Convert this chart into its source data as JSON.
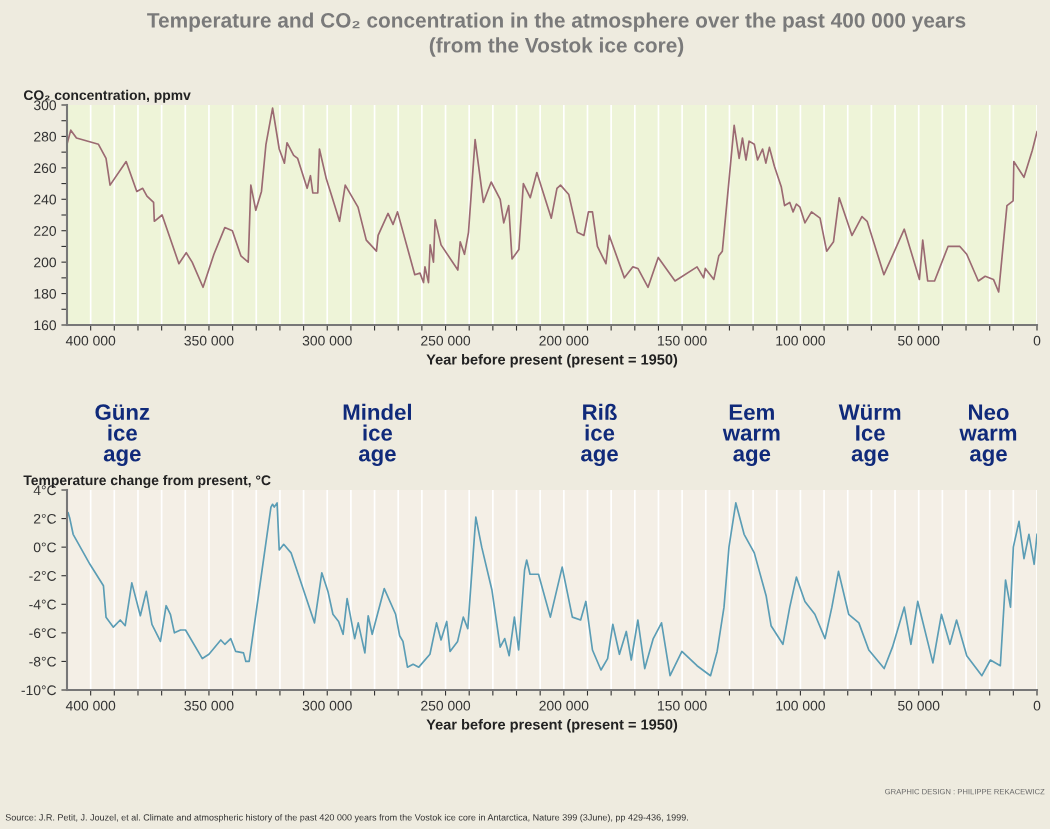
{
  "chart_data": [
    {
      "type": "line",
      "title": "Temperature and CO₂ concentration in the atmosphere over the past 400 000 years",
      "subtitle": "(from the Vostok ice core)",
      "ylabel": "CO₂ concentration, ppmv",
      "xlabel": "Year before present (present = 1950)",
      "grid": "x",
      "xlim": [
        410000,
        0
      ],
      "ylim": [
        160,
        300
      ],
      "xticks": [
        {
          "value": 400000,
          "label": "400 000"
        },
        {
          "value": 390000,
          "label": null
        },
        {
          "value": 380000,
          "label": null
        },
        {
          "value": 370000,
          "label": null
        },
        {
          "value": 360000,
          "label": null
        },
        {
          "value": 350000,
          "label": "350 000"
        },
        {
          "value": 340000,
          "label": null
        },
        {
          "value": 330000,
          "label": null
        },
        {
          "value": 320000,
          "label": null
        },
        {
          "value": 310000,
          "label": null
        },
        {
          "value": 300000,
          "label": "300 000"
        },
        {
          "value": 290000,
          "label": null
        },
        {
          "value": 280000,
          "label": null
        },
        {
          "value": 270000,
          "label": null
        },
        {
          "value": 260000,
          "label": null
        },
        {
          "value": 250000,
          "label": "250 000"
        },
        {
          "value": 240000,
          "label": null
        },
        {
          "value": 230000,
          "label": null
        },
        {
          "value": 220000,
          "label": null
        },
        {
          "value": 210000,
          "label": null
        },
        {
          "value": 200000,
          "label": "200 000"
        },
        {
          "value": 190000,
          "label": null
        },
        {
          "value": 180000,
          "label": null
        },
        {
          "value": 170000,
          "label": null
        },
        {
          "value": 160000,
          "label": null
        },
        {
          "value": 150000,
          "label": "150 000"
        },
        {
          "value": 140000,
          "label": null
        },
        {
          "value": 130000,
          "label": null
        },
        {
          "value": 120000,
          "label": null
        },
        {
          "value": 110000,
          "label": null
        },
        {
          "value": 100000,
          "label": "100 000"
        },
        {
          "value": 90000,
          "label": null
        },
        {
          "value": 80000,
          "label": null
        },
        {
          "value": 70000,
          "label": null
        },
        {
          "value": 60000,
          "label": null
        },
        {
          "value": 50000,
          "label": "50 000"
        },
        {
          "value": 40000,
          "label": null
        },
        {
          "value": 30000,
          "label": null
        },
        {
          "value": 20000,
          "label": null
        },
        {
          "value": 10000,
          "label": null
        },
        0
      ],
      "yticks": [
        160,
        {
          "value": 170,
          "label": null
        },
        180,
        {
          "value": 190,
          "label": null
        },
        200,
        {
          "value": 210,
          "label": null
        },
        220,
        {
          "value": 230,
          "label": null
        },
        240,
        {
          "value": 250,
          "label": null
        },
        260,
        {
          "value": 270,
          "label": null
        },
        280,
        {
          "value": 290,
          "label": null
        },
        300
      ],
      "series": [
        {
          "color": "#9b6a72",
          "x": [
            410000,
            408400,
            406000,
            396700,
            393500,
            391800,
            385000,
            380500,
            378000,
            376200,
            373400,
            373100,
            369800,
            362700,
            359600,
            357100,
            352500,
            347900,
            343300,
            340100,
            336500,
            333400,
            332300,
            330200,
            327800,
            325900,
            323100,
            320300,
            318100,
            317000,
            314200,
            312500,
            308500,
            307100,
            306100,
            304000,
            303300,
            300400,
            298300,
            294800,
            292400,
            287000,
            283500,
            279200,
            278500,
            274300,
            272200,
            270300,
            263000,
            260800,
            259300,
            258700,
            257200,
            256500,
            255100,
            254400,
            251900,
            244800,
            243800,
            242000,
            240300,
            237500,
            234000,
            232500,
            230700,
            226900,
            225400,
            223300,
            221900,
            219000,
            217100,
            214200,
            211400,
            205300,
            202900,
            201400,
            197900,
            194300,
            191500,
            189600,
            187900,
            185800,
            182200,
            180800,
            174400,
            170800,
            168700,
            164400,
            160100,
            153000,
            143700,
            140900,
            140200,
            136600,
            134500,
            133000,
            128000,
            125900,
            124500,
            123000,
            121700,
            119500,
            118100,
            116000,
            114600,
            113100,
            111000,
            108100,
            106700,
            104500,
            103100,
            101700,
            100200,
            98100,
            95300,
            91700,
            88900,
            86000,
            83600,
            78200,
            74000,
            71800,
            64700,
            56100,
            49700,
            48300,
            46200,
            43300,
            37600,
            32600,
            29700,
            24800,
            21900,
            18400,
            16200,
            12700,
            10100,
            9800,
            5500,
            2000,
            0
          ],
          "values": [
            275,
            284,
            279,
            275,
            266,
            249,
            264,
            245,
            247,
            242,
            238,
            226,
            230,
            199,
            206,
            200,
            184,
            205,
            222,
            220,
            204,
            200,
            249,
            233,
            245,
            275,
            298,
            272,
            263,
            276,
            268,
            266,
            247,
            255,
            244,
            244,
            272,
            253,
            243,
            226,
            249,
            235,
            214,
            207,
            217,
            231,
            224,
            232,
            192,
            193,
            187,
            197,
            187,
            211,
            200,
            227,
            211,
            195,
            213,
            205,
            219,
            278,
            238,
            244,
            251,
            240,
            225,
            236,
            202,
            208,
            250,
            241,
            257,
            228,
            247,
            249,
            243,
            219,
            217,
            232,
            232,
            210,
            199,
            217,
            190,
            197,
            196,
            184,
            203,
            188,
            197,
            190,
            196,
            189,
            204,
            207,
            287,
            266,
            279,
            265,
            277,
            275,
            265,
            272,
            263,
            273,
            261,
            248,
            236,
            238,
            232,
            237,
            235,
            225,
            232,
            228,
            207,
            213,
            241,
            217,
            229,
            226,
            192,
            221,
            189,
            214,
            188,
            188,
            210,
            210,
            205,
            188,
            191,
            189,
            181,
            236,
            239,
            264,
            254,
            271,
            283
          ]
        }
      ]
    },
    {
      "type": "line",
      "ylabel": "Temperature change from present, °C",
      "xlabel": "Year before present (present = 1950)",
      "grid": "x",
      "xlim": [
        410000,
        0
      ],
      "ylim": [
        -10,
        4
      ],
      "xticks": [
        {
          "value": 400000,
          "label": "400 000"
        },
        {
          "value": 390000,
          "label": null
        },
        {
          "value": 380000,
          "label": null
        },
        {
          "value": 370000,
          "label": null
        },
        {
          "value": 360000,
          "label": null
        },
        {
          "value": 350000,
          "label": "350 000"
        },
        {
          "value": 340000,
          "label": null
        },
        {
          "value": 330000,
          "label": null
        },
        {
          "value": 320000,
          "label": null
        },
        {
          "value": 310000,
          "label": null
        },
        {
          "value": 300000,
          "label": "300 000"
        },
        {
          "value": 290000,
          "label": null
        },
        {
          "value": 280000,
          "label": null
        },
        {
          "value": 270000,
          "label": null
        },
        {
          "value": 260000,
          "label": null
        },
        {
          "value": 250000,
          "label": "250 000"
        },
        {
          "value": 240000,
          "label": null
        },
        {
          "value": 230000,
          "label": null
        },
        {
          "value": 220000,
          "label": null
        },
        {
          "value": 210000,
          "label": null
        },
        {
          "value": 200000,
          "label": "200 000"
        },
        {
          "value": 190000,
          "label": null
        },
        {
          "value": 180000,
          "label": null
        },
        {
          "value": 170000,
          "label": null
        },
        {
          "value": 160000,
          "label": null
        },
        {
          "value": 150000,
          "label": "150 000"
        },
        {
          "value": 140000,
          "label": null
        },
        {
          "value": 130000,
          "label": null
        },
        {
          "value": 120000,
          "label": null
        },
        {
          "value": 110000,
          "label": null
        },
        {
          "value": 100000,
          "label": "100 000"
        },
        {
          "value": 90000,
          "label": null
        },
        {
          "value": 80000,
          "label": null
        },
        {
          "value": 70000,
          "label": null
        },
        {
          "value": 60000,
          "label": null
        },
        {
          "value": 50000,
          "label": "50 000"
        },
        {
          "value": 40000,
          "label": null
        },
        {
          "value": 30000,
          "label": null
        },
        {
          "value": 20000,
          "label": null
        },
        {
          "value": 10000,
          "label": null
        },
        0
      ],
      "yticks": [
        {
          "value": -10,
          "label": "-10°C"
        },
        {
          "value": -8,
          "label": "-8°C"
        },
        {
          "value": -6,
          "label": "-6°C"
        },
        {
          "value": -4,
          "label": "-4°C"
        },
        {
          "value": -2,
          "label": "-2°C"
        },
        {
          "value": 0,
          "label": "0°C"
        },
        {
          "value": 2,
          "label": "2°C"
        },
        {
          "value": 4,
          "label": "4°C"
        }
      ],
      "series": [
        {
          "color": "#5b9db5",
          "x": [
            409500,
            408800,
            407400,
            400300,
            394600,
            393500,
            390400,
            387500,
            385400,
            382600,
            379000,
            376500,
            374100,
            370500,
            368100,
            366300,
            364600,
            362000,
            359900,
            352800,
            350000,
            345000,
            343300,
            340800,
            338700,
            335400,
            334400,
            333000,
            323800,
            323100,
            322400,
            321200,
            320300,
            318400,
            315300,
            305400,
            302300,
            299700,
            297600,
            295200,
            293300,
            291600,
            288400,
            286900,
            284100,
            282700,
            281000,
            275900,
            271100,
            269400,
            268000,
            266100,
            263700,
            261300,
            256600,
            253800,
            251900,
            249500,
            248100,
            244900,
            242500,
            240600,
            237200,
            234700,
            230400,
            226900,
            225000,
            223100,
            220900,
            219100,
            216600,
            215700,
            214300,
            210700,
            205700,
            200700,
            196400,
            192900,
            190700,
            187900,
            184300,
            181500,
            179300,
            176500,
            173600,
            171500,
            168700,
            165800,
            162200,
            158700,
            155100,
            150100,
            143700,
            138000,
            135200,
            132300,
            130200,
            127300,
            123800,
            119500,
            114500,
            112400,
            107400,
            104500,
            101700,
            98100,
            93900,
            89600,
            86700,
            83900,
            79600,
            75300,
            71100,
            64600,
            61100,
            56100,
            53300,
            50400,
            44000,
            40400,
            36800,
            34000,
            29700,
            23300,
            19700,
            15500,
            13300,
            11200,
            10000,
            7600,
            5500,
            3400,
            1200,
            0
          ],
          "values": [
            2.4,
            2.0,
            0.9,
            -1.2,
            -2.7,
            -4.9,
            -5.6,
            -5.1,
            -5.5,
            -2.5,
            -4.8,
            -3.1,
            -5.4,
            -6.6,
            -4.1,
            -4.7,
            -6.0,
            -5.8,
            -5.8,
            -7.8,
            -7.5,
            -6.5,
            -6.8,
            -6.4,
            -7.3,
            -7.4,
            -8.0,
            -8.0,
            2.8,
            3.0,
            2.8,
            3.1,
            -0.2,
            0.2,
            -0.4,
            -5.3,
            -1.8,
            -3.1,
            -4.7,
            -5.2,
            -6.1,
            -3.6,
            -6.4,
            -5.3,
            -7.4,
            -4.8,
            -6.1,
            -2.9,
            -4.7,
            -6.2,
            -6.6,
            -8.4,
            -8.2,
            -8.4,
            -7.5,
            -5.3,
            -6.5,
            -5.2,
            -7.3,
            -6.6,
            -4.9,
            -5.7,
            2.1,
            0.0,
            -3.0,
            -7.0,
            -6.4,
            -7.6,
            -4.9,
            -7.2,
            -1.6,
            -0.9,
            -1.9,
            -1.9,
            -4.9,
            -1.4,
            -4.9,
            -5.1,
            -3.8,
            -7.2,
            -8.6,
            -7.8,
            -5.4,
            -7.5,
            -5.9,
            -7.9,
            -5.1,
            -8.5,
            -6.4,
            -5.3,
            -9.0,
            -7.3,
            -8.3,
            -9.0,
            -7.3,
            -4.2,
            0.0,
            3.1,
            0.9,
            -0.4,
            -3.4,
            -5.5,
            -6.8,
            -4.2,
            -2.1,
            -3.8,
            -4.7,
            -6.4,
            -4.2,
            -1.7,
            -4.7,
            -5.3,
            -7.2,
            -8.5,
            -7.0,
            -4.2,
            -6.8,
            -3.8,
            -8.1,
            -4.7,
            -6.8,
            -5.1,
            -7.6,
            -9.0,
            -7.9,
            -8.3,
            -2.3,
            -4.2,
            0.0,
            1.8,
            -0.8,
            0.9,
            -1.2,
            0.9
          ]
        }
      ],
      "annotations": [
        "Günz\nice\nage",
        "Mindel\nice\nage",
        "Riß\nice\nage",
        "Eem\nwarm\nage",
        "Würm\nIce\nage",
        "Neo\nwarm\nage",
        "GRAPHIC DESIGN : PHILIPPE REKACEWICZ",
        "Source: J.R. Petit, J. Jouzel, et al. Climate and atmospheric history of the past 420 000 years from the Vostok ice core in Antarctica, Nature 399 (3June), pp 429-436, 1999."
      ]
    }
  ]
}
